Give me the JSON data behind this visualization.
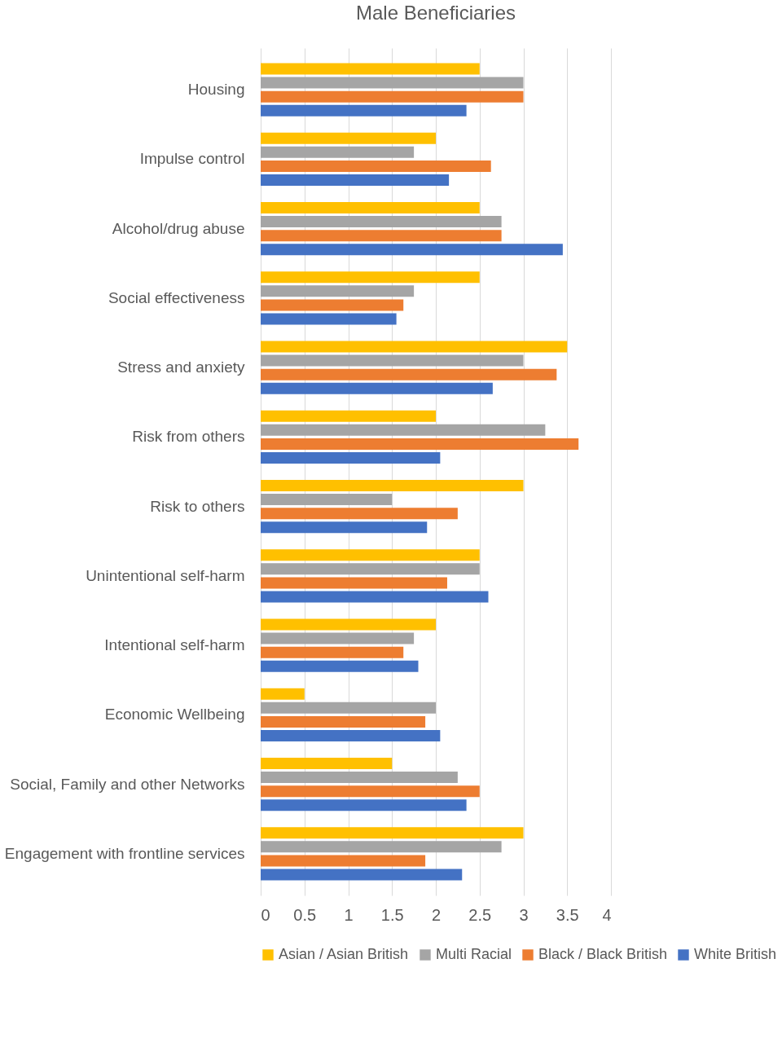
{
  "chart_data": {
    "type": "bar",
    "orientation": "horizontal",
    "title": "Male Beneficiaries",
    "categories": [
      "Housing",
      "Impulse control",
      "Alcohol/drug abuse",
      "Social effectiveness",
      "Stress and anxiety",
      "Risk from others",
      "Risk to others",
      "Unintentional self-harm",
      "Intentional self-harm",
      "Economic Wellbeing",
      "Social, Family and other Networks",
      "Engagement with frontline services"
    ],
    "series": [
      {
        "name": "Asian / Asian British",
        "color": "#ffc000",
        "values": [
          2.5,
          2.0,
          2.5,
          2.5,
          3.5,
          2.0,
          3.0,
          2.5,
          2.0,
          0.5,
          1.5,
          3.0
        ]
      },
      {
        "name": "Multi Racial",
        "color": "#a5a5a5",
        "values": [
          3.0,
          1.75,
          2.75,
          1.75,
          3.0,
          3.25,
          1.5,
          2.5,
          1.75,
          2.0,
          2.25,
          2.75
        ]
      },
      {
        "name": "Black / Black British",
        "color": "#ed7d31",
        "values": [
          3.0,
          2.63,
          2.75,
          1.63,
          3.38,
          3.63,
          2.25,
          2.13,
          1.63,
          1.88,
          2.5,
          1.88
        ]
      },
      {
        "name": "White British",
        "color": "#4472c4",
        "values": [
          2.35,
          2.15,
          3.45,
          1.55,
          2.65,
          2.05,
          1.9,
          2.6,
          1.8,
          2.05,
          2.35,
          2.3
        ]
      }
    ],
    "xlim": [
      0,
      4
    ],
    "xticks": [
      0,
      0.5,
      1,
      1.5,
      2,
      2.5,
      3,
      3.5,
      4
    ],
    "grid": "x",
    "legend": "bottom"
  }
}
